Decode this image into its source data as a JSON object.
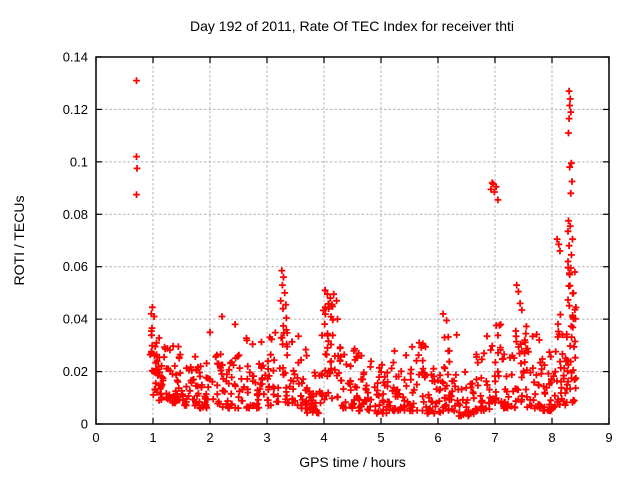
{
  "chart_data": {
    "type": "scatter",
    "title": "Day 192 of 2011, Rate Of TEC Index for receiver thti",
    "xlabel": "GPS time / hours",
    "ylabel": "ROTI / TECUs",
    "xlim": [
      0,
      9
    ],
    "ylim": [
      0,
      0.14
    ],
    "xticks": {
      "values": [
        0,
        1,
        2,
        3,
        4,
        5,
        6,
        7,
        8,
        9
      ],
      "labels": [
        "0",
        "1",
        "2",
        "3",
        "4",
        "5",
        "6",
        "7",
        "8",
        "9"
      ]
    },
    "yticks": {
      "values": [
        0,
        0.02,
        0.04,
        0.06,
        0.08,
        0.1,
        0.12,
        0.14
      ],
      "labels": [
        "0",
        "0.02",
        "0.04",
        "0.06",
        "0.08",
        "0.1",
        "0.12",
        "0.14"
      ]
    },
    "grid": {
      "show": true,
      "color": "#b3b3b3",
      "dash": "2.5 2"
    },
    "axis_color": "#000000",
    "background": "#ffffff",
    "legend": "none",
    "series_name": "ROTI",
    "marker": {
      "shape": "plus",
      "color": "#ff0000",
      "size": 7,
      "stroke_width": 1.8
    },
    "points_explicit_note": "isolated/high points read directly off the plot as [x hours, y TECU]",
    "points_explicit": [
      [
        0.71,
        0.131
      ],
      [
        0.71,
        0.102
      ],
      [
        0.72,
        0.0975
      ],
      [
        0.71,
        0.0875
      ],
      [
        0.99,
        0.0445
      ],
      [
        0.97,
        0.042
      ],
      [
        1.02,
        0.041
      ],
      [
        2.0,
        0.035
      ],
      [
        2.21,
        0.041
      ],
      [
        2.44,
        0.038
      ],
      [
        3.26,
        0.0585
      ],
      [
        3.29,
        0.056
      ],
      [
        3.27,
        0.053
      ],
      [
        3.31,
        0.05
      ],
      [
        3.24,
        0.047
      ],
      [
        3.33,
        0.0455
      ],
      [
        3.28,
        0.044
      ],
      [
        3.55,
        0.0335
      ],
      [
        4.02,
        0.051
      ],
      [
        4.06,
        0.0495
      ],
      [
        4.11,
        0.048
      ],
      [
        4.17,
        0.0495
      ],
      [
        4.22,
        0.047
      ],
      [
        4.14,
        0.0455
      ],
      [
        4.08,
        0.044
      ],
      [
        6.09,
        0.042
      ],
      [
        6.15,
        0.0395
      ],
      [
        6.86,
        0.0335
      ],
      [
        6.93,
        0.0895
      ],
      [
        6.95,
        0.092
      ],
      [
        6.97,
        0.0915
      ],
      [
        6.99,
        0.0885
      ],
      [
        7.02,
        0.0905
      ],
      [
        7.05,
        0.0855
      ],
      [
        7.38,
        0.053
      ],
      [
        7.41,
        0.0505
      ],
      [
        7.44,
        0.046
      ],
      [
        7.47,
        0.0435
      ],
      [
        8.09,
        0.0705
      ],
      [
        8.12,
        0.0685
      ],
      [
        8.14,
        0.066
      ],
      [
        8.3,
        0.127
      ],
      [
        8.32,
        0.124
      ],
      [
        8.31,
        0.1215
      ],
      [
        8.33,
        0.119
      ],
      [
        8.3,
        0.1165
      ],
      [
        8.29,
        0.111
      ],
      [
        8.34,
        0.0995
      ],
      [
        8.31,
        0.098
      ],
      [
        8.35,
        0.0925
      ],
      [
        8.33,
        0.088
      ],
      [
        8.29,
        0.0775
      ],
      [
        8.32,
        0.0755
      ],
      [
        8.28,
        0.0735
      ],
      [
        8.36,
        0.0705
      ],
      [
        8.3,
        0.068
      ],
      [
        8.34,
        0.0645
      ],
      [
        8.28,
        0.062
      ],
      [
        8.33,
        0.0595
      ],
      [
        8.31,
        0.057
      ]
    ],
    "bands_format": [
      "x_start",
      "x_end",
      "y_min",
      "y_max",
      "point_count",
      "low_bias_exponent"
    ],
    "bands_note": "dense scatter band envelopes read off the plot; points fill each envelope, bottom-biased",
    "bands": [
      [
        0.95,
        1.08,
        0.02,
        0.04,
        16,
        1.5
      ],
      [
        1.0,
        1.15,
        0.011,
        0.03,
        14,
        1.8
      ],
      [
        1.08,
        1.3,
        0.009,
        0.033,
        26,
        1.9
      ],
      [
        1.3,
        1.55,
        0.008,
        0.03,
        32,
        1.9
      ],
      [
        1.55,
        1.8,
        0.007,
        0.026,
        28,
        2.0
      ],
      [
        1.8,
        2.05,
        0.006,
        0.024,
        25,
        2.0
      ],
      [
        2.05,
        2.3,
        0.006,
        0.028,
        25,
        2.0
      ],
      [
        2.3,
        2.6,
        0.006,
        0.03,
        30,
        2.0
      ],
      [
        2.6,
        2.9,
        0.006,
        0.033,
        30,
        2.0
      ],
      [
        2.9,
        3.15,
        0.007,
        0.036,
        30,
        1.9
      ],
      [
        3.15,
        3.45,
        0.008,
        0.042,
        34,
        1.8
      ],
      [
        3.45,
        3.7,
        0.006,
        0.031,
        28,
        1.9
      ],
      [
        3.7,
        3.95,
        0.004,
        0.024,
        28,
        2.1
      ],
      [
        3.95,
        4.28,
        0.009,
        0.046,
        42,
        1.4
      ],
      [
        4.28,
        4.55,
        0.006,
        0.031,
        32,
        1.9
      ],
      [
        4.55,
        4.85,
        0.005,
        0.028,
        32,
        2.0
      ],
      [
        4.85,
        5.15,
        0.004,
        0.023,
        32,
        2.0
      ],
      [
        5.15,
        5.45,
        0.005,
        0.028,
        32,
        2.0
      ],
      [
        5.45,
        5.8,
        0.005,
        0.031,
        34,
        2.0
      ],
      [
        5.8,
        6.05,
        0.004,
        0.022,
        28,
        2.0
      ],
      [
        6.05,
        6.35,
        0.005,
        0.038,
        36,
        1.9
      ],
      [
        6.35,
        6.65,
        0.003,
        0.02,
        30,
        2.0
      ],
      [
        6.65,
        6.92,
        0.005,
        0.027,
        28,
        2.0
      ],
      [
        6.92,
        7.1,
        0.008,
        0.04,
        22,
        1.7
      ],
      [
        7.1,
        7.35,
        0.006,
        0.028,
        28,
        2.0
      ],
      [
        7.35,
        7.52,
        0.008,
        0.042,
        20,
        1.6
      ],
      [
        7.52,
        7.8,
        0.006,
        0.038,
        32,
        1.9
      ],
      [
        7.8,
        8.08,
        0.005,
        0.028,
        32,
        2.0
      ],
      [
        8.08,
        8.25,
        0.007,
        0.045,
        26,
        1.6
      ],
      [
        8.25,
        8.42,
        0.008,
        0.062,
        44,
        1.3
      ]
    ]
  }
}
